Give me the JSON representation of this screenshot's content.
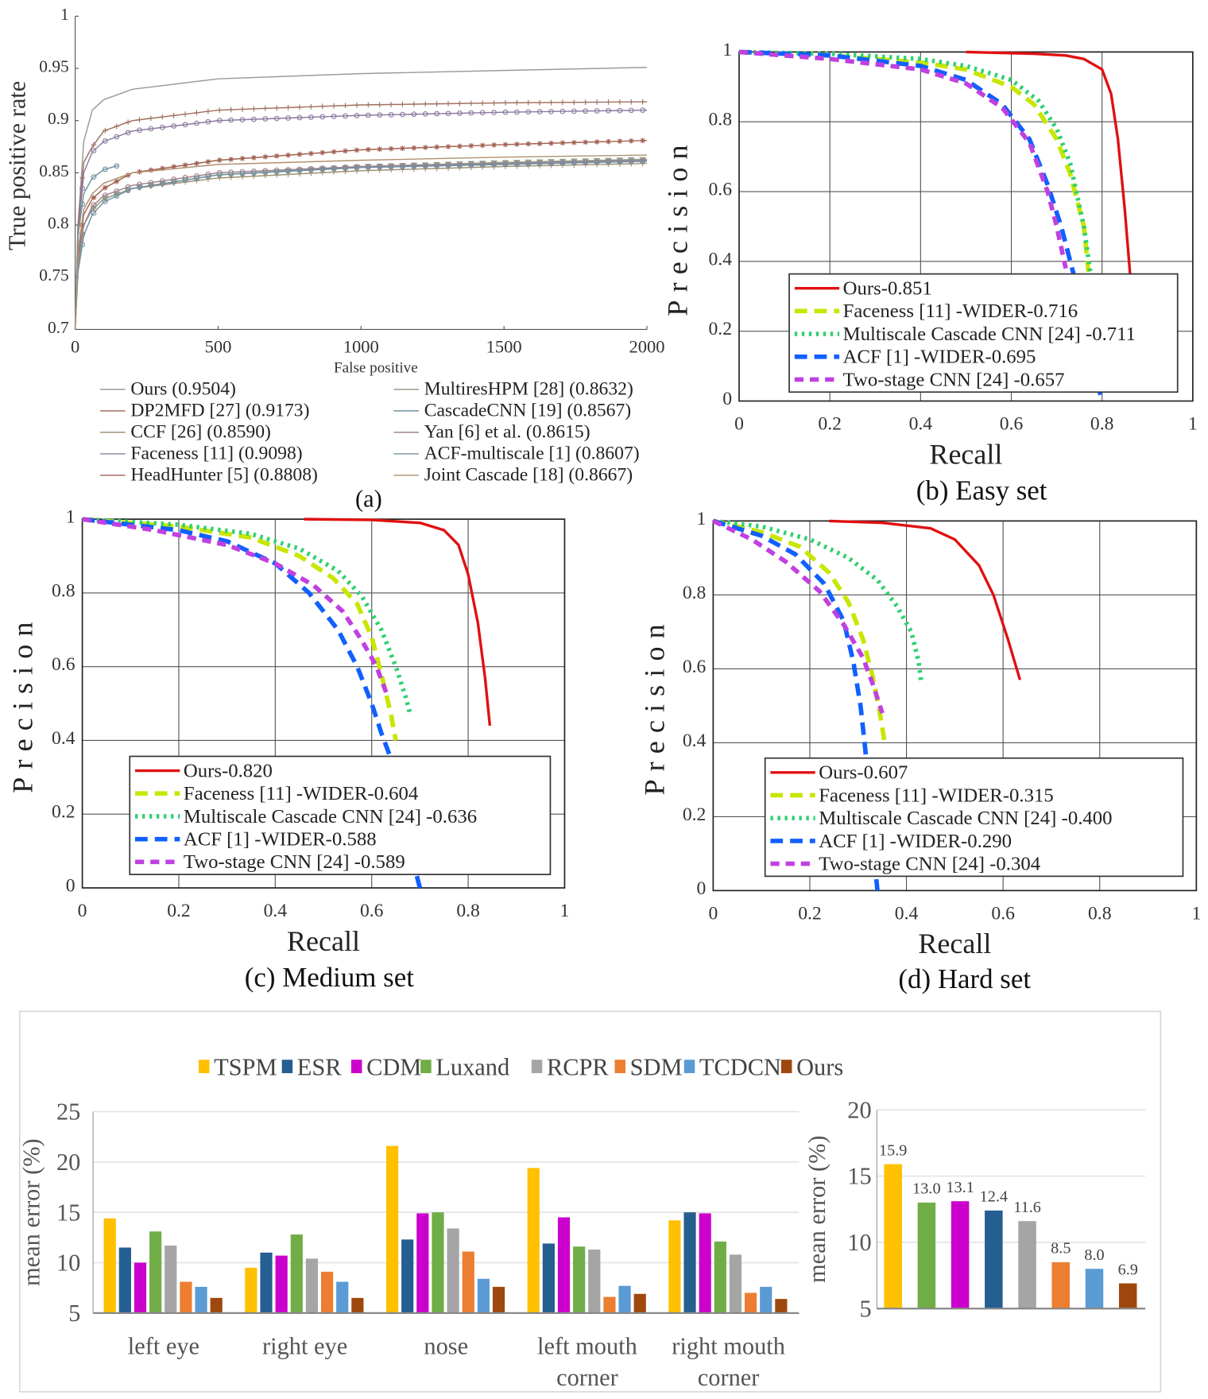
{
  "chart_data": [
    {
      "id": "a",
      "type": "line",
      "caption": "(a)",
      "xlabel": "False positive",
      "ylabel": "True positive rate",
      "xlim": [
        0,
        2000
      ],
      "ylim": [
        0.7,
        1
      ],
      "xticks": [
        "0",
        "500",
        "1000",
        "1500",
        "2000"
      ],
      "yticks": [
        "0.7",
        "0.75",
        "0.8",
        "0.85",
        "0.9",
        "0.95",
        "1"
      ],
      "series": [
        {
          "name": "Ours (0.9504)",
          "color": "#9a9a9a",
          "marker": "",
          "x": [
            0,
            10,
            30,
            60,
            100,
            200,
            500,
            1000,
            1500,
            2000
          ],
          "y": [
            0.7,
            0.8,
            0.88,
            0.91,
            0.92,
            0.93,
            0.94,
            0.945,
            0.948,
            0.951
          ]
        },
        {
          "name": "DP2MFD [27] (0.9173)",
          "color": "#a07060",
          "marker": "+",
          "x": [
            0,
            10,
            30,
            60,
            100,
            200,
            500,
            1000,
            1500,
            2000
          ],
          "y": [
            0.7,
            0.8,
            0.86,
            0.875,
            0.89,
            0.9,
            0.91,
            0.915,
            0.917,
            0.918
          ]
        },
        {
          "name": "CCF [26] (0.8590)",
          "color": "#a09070",
          "marker": "+",
          "x": [
            0,
            10,
            30,
            60,
            100,
            200,
            500,
            1000,
            1500,
            2000
          ],
          "y": [
            0.7,
            0.76,
            0.8,
            0.815,
            0.825,
            0.835,
            0.845,
            0.852,
            0.856,
            0.859
          ]
        },
        {
          "name": "Faceness [11] (0.9098)",
          "color": "#8a7aa0",
          "marker": "o",
          "x": [
            0,
            10,
            30,
            60,
            100,
            200,
            500,
            1000,
            1500,
            2000
          ],
          "y": [
            0.7,
            0.79,
            0.85,
            0.87,
            0.88,
            0.89,
            0.9,
            0.905,
            0.908,
            0.91
          ]
        },
        {
          "name": "HeadHunter [5] (0.8808)",
          "color": "#a06050",
          "marker": "*",
          "x": [
            0,
            10,
            30,
            60,
            100,
            200,
            500,
            1000,
            1500,
            2000
          ],
          "y": [
            0.7,
            0.77,
            0.81,
            0.825,
            0.835,
            0.85,
            0.862,
            0.872,
            0.877,
            0.881
          ]
        },
        {
          "name": "MultiresHPM [28] (0.8632)",
          "color": "#90a080",
          "marker": "v",
          "x": [
            0,
            10,
            30,
            60,
            100,
            200,
            500,
            1000,
            1500,
            2000
          ],
          "y": [
            0.7,
            0.76,
            0.8,
            0.815,
            0.825,
            0.835,
            0.848,
            0.856,
            0.86,
            0.863
          ]
        },
        {
          "name": "CascadeCNN [19] (0.8567)",
          "color": "#7090a0",
          "marker": "o",
          "x": [
            0,
            10,
            30,
            60,
            100,
            150
          ],
          "y": [
            0.7,
            0.79,
            0.83,
            0.845,
            0.853,
            0.857
          ]
        },
        {
          "name": "Yan [6] et al. (0.8615)",
          "color": "#a08090",
          "marker": "o",
          "x": [
            0,
            10,
            30,
            60,
            100,
            200,
            500,
            1000,
            1500,
            2000
          ],
          "y": [
            0.7,
            0.765,
            0.8,
            0.818,
            0.828,
            0.838,
            0.85,
            0.856,
            0.859,
            0.862
          ]
        },
        {
          "name": "ACF-multiscale [1] (0.8607)",
          "color": "#7090a0",
          "marker": "o",
          "x": [
            0,
            10,
            30,
            60,
            100,
            200,
            500,
            1000,
            1500,
            2000
          ],
          "y": [
            0.7,
            0.755,
            0.79,
            0.81,
            0.822,
            0.835,
            0.848,
            0.855,
            0.858,
            0.861
          ]
        },
        {
          "name": "Joint Cascade [18] (0.8667)",
          "color": "#b09070",
          "marker": "",
          "x": [
            0,
            10,
            30,
            60,
            100,
            200,
            500,
            1000,
            1500,
            2000
          ],
          "y": [
            0.7,
            0.775,
            0.815,
            0.83,
            0.84,
            0.85,
            0.858,
            0.862,
            0.865,
            0.867
          ]
        }
      ]
    },
    {
      "id": "b",
      "type": "line",
      "caption": "(b) Easy set",
      "xlabel": "Recall",
      "ylabel": "Precision",
      "xlim": [
        0,
        1
      ],
      "ylim": [
        0,
        1
      ],
      "xticks": [
        "0",
        "0.2",
        "0.4",
        "0.6",
        "0.8",
        "1"
      ],
      "yticks": [
        "0",
        "0.2",
        "0.4",
        "0.6",
        "0.8",
        "1"
      ],
      "series": [
        {
          "name": "Ours-0.851",
          "style": "solid",
          "color": "#e01010",
          "x": [
            0.5,
            0.65,
            0.72,
            0.76,
            0.8,
            0.82,
            0.835,
            0.85,
            0.862
          ],
          "y": [
            1,
            0.995,
            0.99,
            0.98,
            0.95,
            0.88,
            0.75,
            0.55,
            0.36
          ]
        },
        {
          "name": "Faceness [11] -WIDER-0.716",
          "style": "dash",
          "color": "#c8e600",
          "x": [
            0,
            0.2,
            0.4,
            0.5,
            0.6,
            0.65,
            0.7,
            0.73,
            0.76,
            0.77
          ],
          "y": [
            1,
            0.99,
            0.97,
            0.95,
            0.9,
            0.85,
            0.75,
            0.65,
            0.5,
            0.37
          ]
        },
        {
          "name": "Multiscale Cascade CNN [24] -0.711",
          "style": "dot",
          "color": "#30d070",
          "x": [
            0,
            0.2,
            0.4,
            0.5,
            0.6,
            0.66,
            0.7,
            0.73,
            0.76,
            0.775
          ],
          "y": [
            1,
            0.995,
            0.98,
            0.96,
            0.92,
            0.86,
            0.78,
            0.68,
            0.5,
            0.36
          ]
        },
        {
          "name": "ACF [1] -WIDER-0.695",
          "style": "dash",
          "color": "#1060ff",
          "x": [
            0,
            0.2,
            0.4,
            0.5,
            0.58,
            0.64,
            0.68,
            0.71,
            0.74,
            0.77,
            0.8
          ],
          "y": [
            1,
            0.99,
            0.96,
            0.92,
            0.85,
            0.75,
            0.62,
            0.5,
            0.35,
            0.15,
            0
          ]
        },
        {
          "name": "Two-stage CNN [24] -0.657",
          "style": "dash2",
          "color": "#c040e0",
          "x": [
            0,
            0.2,
            0.4,
            0.5,
            0.58,
            0.64,
            0.68,
            0.7,
            0.72
          ],
          "y": [
            1,
            0.98,
            0.95,
            0.91,
            0.84,
            0.74,
            0.6,
            0.5,
            0.38
          ]
        }
      ]
    },
    {
      "id": "c",
      "type": "line",
      "caption": "(c) Medium set",
      "xlabel": "Recall",
      "ylabel": "Precision",
      "xlim": [
        0,
        1
      ],
      "ylim": [
        0,
        1
      ],
      "xticks": [
        "0",
        "0.2",
        "0.4",
        "0.6",
        "0.8",
        "1"
      ],
      "yticks": [
        "0",
        "0.2",
        "0.4",
        "0.6",
        "0.8",
        "1"
      ],
      "series": [
        {
          "name": "Ours-0.820",
          "style": "solid",
          "color": "#e01010",
          "x": [
            0.46,
            0.6,
            0.7,
            0.75,
            0.78,
            0.8,
            0.82,
            0.835,
            0.845
          ],
          "y": [
            1,
            0.998,
            0.99,
            0.97,
            0.93,
            0.85,
            0.72,
            0.57,
            0.44
          ]
        },
        {
          "name": "Faceness [11] -WIDER-0.604",
          "style": "dash",
          "color": "#c8e600",
          "x": [
            0,
            0.2,
            0.35,
            0.45,
            0.52,
            0.57,
            0.6,
            0.62,
            0.64,
            0.65
          ],
          "y": [
            1,
            0.98,
            0.95,
            0.9,
            0.84,
            0.77,
            0.68,
            0.58,
            0.47,
            0.4
          ]
        },
        {
          "name": "Multiscale Cascade CNN [24] -0.636",
          "style": "dot",
          "color": "#30d070",
          "x": [
            0,
            0.2,
            0.35,
            0.45,
            0.53,
            0.58,
            0.62,
            0.65,
            0.67,
            0.68
          ],
          "y": [
            1,
            0.985,
            0.96,
            0.92,
            0.86,
            0.79,
            0.7,
            0.6,
            0.52,
            0.47
          ]
        },
        {
          "name": "ACF [1] -WIDER-0.588",
          "style": "dash",
          "color": "#1060ff",
          "x": [
            0,
            0.2,
            0.3,
            0.4,
            0.47,
            0.53,
            0.57,
            0.6,
            0.62,
            0.64,
            0.67,
            0.7
          ],
          "y": [
            1,
            0.97,
            0.94,
            0.88,
            0.8,
            0.7,
            0.6,
            0.5,
            0.42,
            0.35,
            0.15,
            0
          ]
        },
        {
          "name": "Two-stage CNN [24] -0.589",
          "style": "dash2",
          "color": "#c040e0",
          "x": [
            0,
            0.15,
            0.3,
            0.4,
            0.48,
            0.54,
            0.58,
            0.61,
            0.63
          ],
          "y": [
            1,
            0.97,
            0.93,
            0.88,
            0.82,
            0.75,
            0.67,
            0.6,
            0.53
          ]
        }
      ]
    },
    {
      "id": "d",
      "type": "line",
      "caption": "(d) Hard set",
      "xlabel": "Recall",
      "ylabel": "Precision",
      "xlim": [
        0,
        1
      ],
      "ylim": [
        0,
        1
      ],
      "xticks": [
        "0",
        "0.2",
        "0.4",
        "0.6",
        "0.8",
        "1"
      ],
      "yticks": [
        "0",
        "0.2",
        "0.4",
        "0.6",
        "0.8",
        "1"
      ],
      "series": [
        {
          "name": "Ours-0.607",
          "style": "solid",
          "color": "#e01010",
          "x": [
            0.24,
            0.35,
            0.45,
            0.5,
            0.55,
            0.58,
            0.61,
            0.635
          ],
          "y": [
            1,
            0.995,
            0.98,
            0.95,
            0.88,
            0.8,
            0.68,
            0.57
          ]
        },
        {
          "name": "Faceness [11] -WIDER-0.315",
          "style": "dash",
          "color": "#c8e600",
          "x": [
            0,
            0.1,
            0.18,
            0.24,
            0.28,
            0.31,
            0.33,
            0.345,
            0.355
          ],
          "y": [
            1,
            0.97,
            0.93,
            0.86,
            0.78,
            0.68,
            0.58,
            0.48,
            0.4
          ]
        },
        {
          "name": "Multiscale Cascade CNN [24] -0.400",
          "style": "dot",
          "color": "#30d070",
          "x": [
            0,
            0.1,
            0.2,
            0.28,
            0.34,
            0.38,
            0.41,
            0.425,
            0.43
          ],
          "y": [
            1,
            0.985,
            0.95,
            0.9,
            0.84,
            0.77,
            0.7,
            0.62,
            0.57
          ]
        },
        {
          "name": "ACF [1] -WIDER-0.290",
          "style": "dash",
          "color": "#1060ff",
          "x": [
            0,
            0.1,
            0.17,
            0.23,
            0.27,
            0.29,
            0.305,
            0.315,
            0.325,
            0.34
          ],
          "y": [
            1,
            0.96,
            0.91,
            0.83,
            0.73,
            0.62,
            0.5,
            0.38,
            0.2,
            0
          ]
        },
        {
          "name": "Two-stage CNN [24] -0.304",
          "style": "dash2",
          "color": "#c040e0",
          "x": [
            0,
            0.08,
            0.15,
            0.22,
            0.27,
            0.31,
            0.33,
            0.35
          ],
          "y": [
            1,
            0.95,
            0.89,
            0.81,
            0.72,
            0.63,
            0.56,
            0.48
          ]
        }
      ]
    },
    {
      "id": "e1",
      "type": "bar",
      "ylabel": "mean error (%)",
      "ylim": [
        5,
        25
      ],
      "yticks": [
        "5",
        "10",
        "15",
        "20",
        "25"
      ],
      "categories": [
        "left eye",
        "right eye",
        "nose",
        "left mouth corner",
        "right mouth corner"
      ],
      "category_lines": [
        [
          "left eye"
        ],
        [
          "right eye"
        ],
        [
          "nose"
        ],
        [
          "left mouth",
          "corner"
        ],
        [
          "right mouth",
          "corner"
        ]
      ],
      "legend": [
        "TSPM",
        "ESR",
        "CDM",
        "Luxand",
        "RCPR",
        "SDM",
        "TCDCN",
        "Ours"
      ],
      "colors": [
        "#FFC000",
        "#255E91",
        "#CC00CC",
        "#70AD47",
        "#A5A5A5",
        "#ED7D31",
        "#5B9BD5",
        "#9E480E"
      ],
      "series": [
        {
          "name": "TSPM",
          "values": [
            14.4,
            9.5,
            21.6,
            19.4,
            14.2
          ]
        },
        {
          "name": "ESR",
          "values": [
            11.5,
            11.0,
            12.3,
            11.9,
            15.0
          ]
        },
        {
          "name": "CDM",
          "values": [
            10.0,
            10.7,
            14.9,
            14.5,
            14.9
          ]
        },
        {
          "name": "Luxand",
          "values": [
            13.1,
            12.8,
            15.0,
            11.6,
            12.1
          ]
        },
        {
          "name": "RCPR",
          "values": [
            11.7,
            10.4,
            13.4,
            11.3,
            10.8
          ]
        },
        {
          "name": "SDM",
          "values": [
            8.1,
            9.1,
            11.1,
            6.6,
            7.0
          ]
        },
        {
          "name": "TCDCN",
          "values": [
            7.6,
            8.1,
            8.4,
            7.7,
            7.6
          ]
        },
        {
          "name": "Ours",
          "values": [
            6.5,
            6.5,
            7.6,
            6.9,
            6.4
          ]
        }
      ]
    },
    {
      "id": "e2",
      "type": "bar",
      "ylabel": "mean error (%)",
      "ylim": [
        5,
        20
      ],
      "yticks": [
        "5",
        "10",
        "15",
        "20"
      ],
      "categories": [
        "TSPM",
        "Luxand",
        "CDM",
        "ESR",
        "RCPR",
        "SDM",
        "TCDCN",
        "Ours"
      ],
      "values": [
        15.9,
        13.0,
        13.1,
        12.4,
        11.6,
        8.5,
        8.0,
        6.9
      ],
      "labels": [
        "15.9",
        "13.0",
        "13.1",
        "12.4",
        "11.6",
        "8.5",
        "8.0",
        "6.9"
      ],
      "colors": [
        "#FFC000",
        "#70AD47",
        "#CC00CC",
        "#255E91",
        "#A5A5A5",
        "#ED7D31",
        "#5B9BD5",
        "#9E480E"
      ]
    }
  ]
}
